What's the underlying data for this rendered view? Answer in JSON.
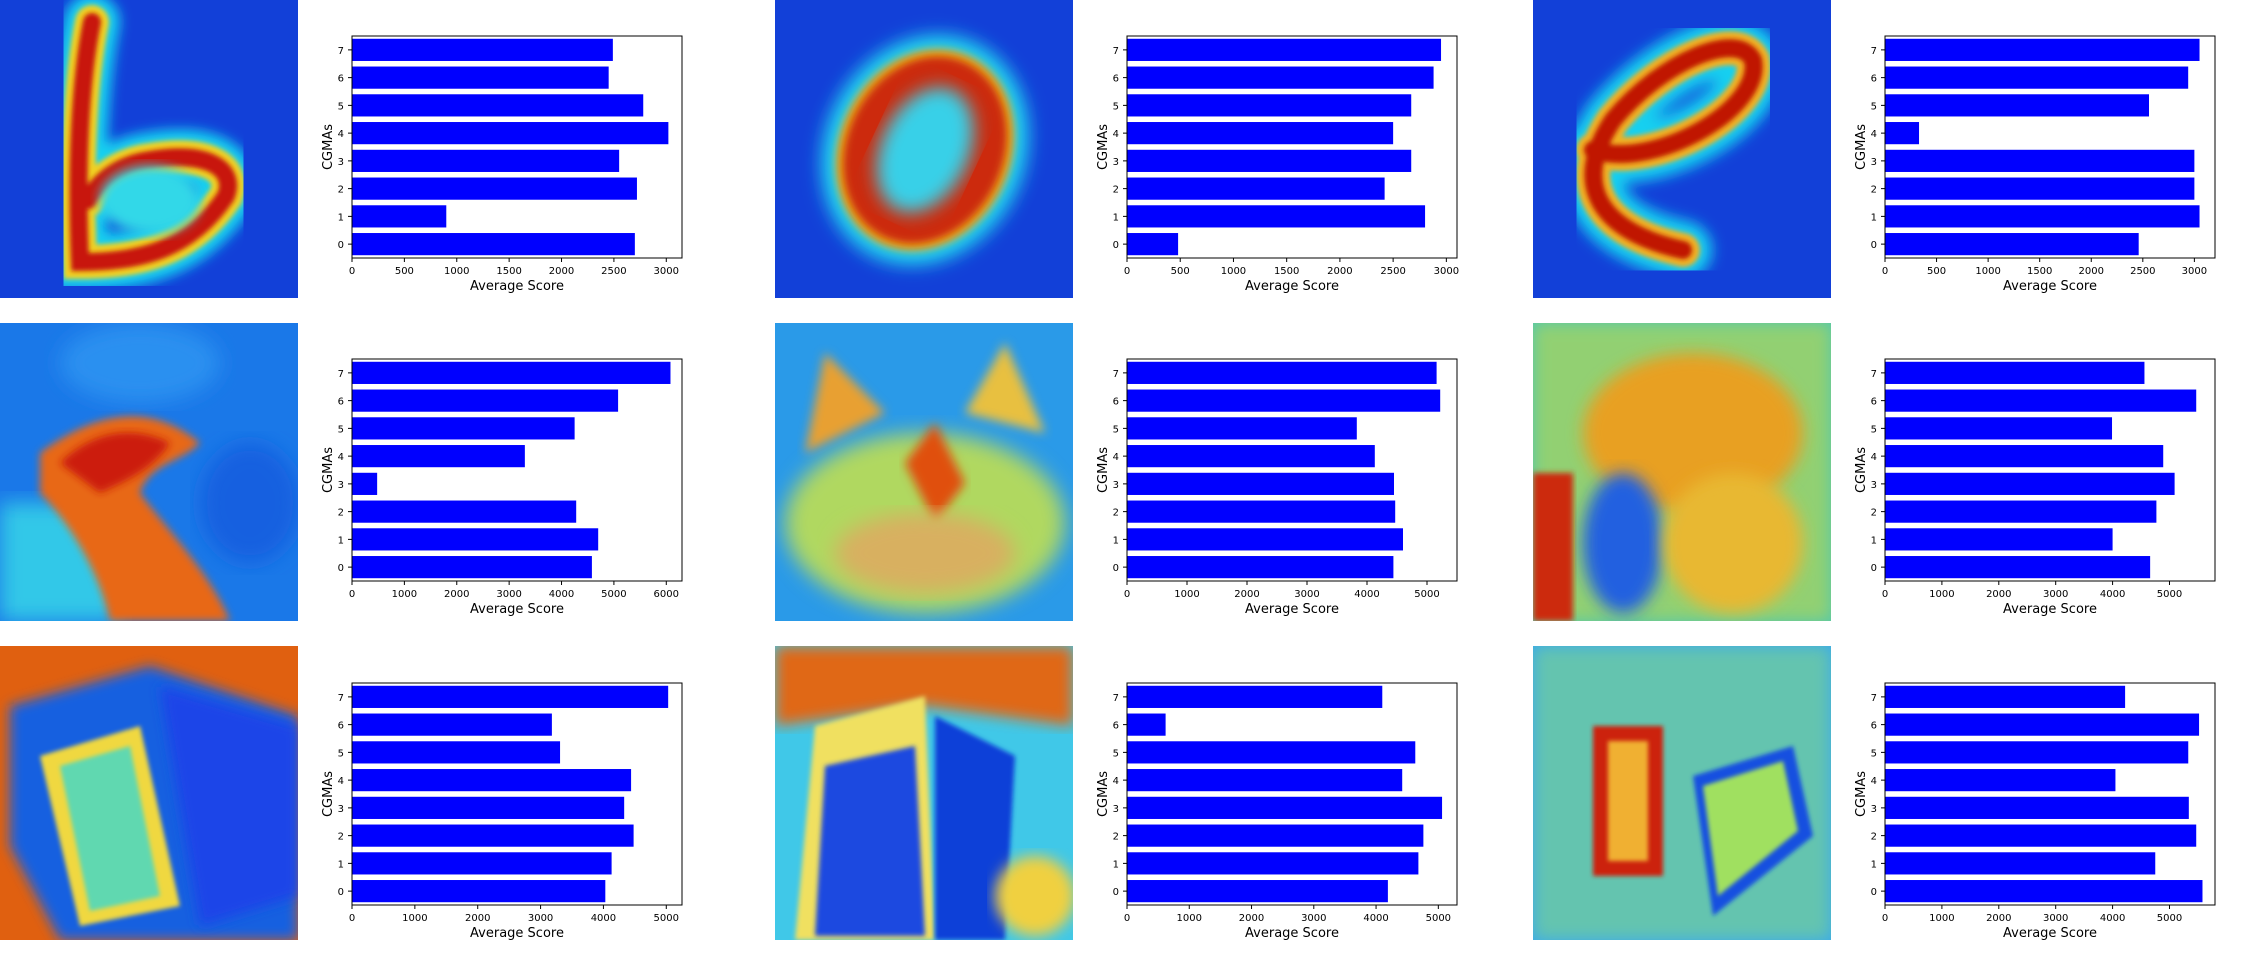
{
  "colors": {
    "bar": "#0000ff",
    "axis": "#000000",
    "background": "#ffffff"
  },
  "panels": [
    {
      "heatmap": "digit-b-heatmap",
      "chart_index": 0
    },
    {
      "heatmap": "digit-0-heatmap",
      "chart_index": 1
    },
    {
      "heatmap": "digit-e-heatmap",
      "chart_index": 2
    },
    {
      "heatmap": "dog-heatmap",
      "chart_index": 3
    },
    {
      "heatmap": "cat-face-heatmap",
      "chart_index": 4
    },
    {
      "heatmap": "cat-sitting-heatmap",
      "chart_index": 5
    },
    {
      "heatmap": "accordion-closeup-heatmap",
      "chart_index": 6
    },
    {
      "heatmap": "accordion-angle-heatmap",
      "chart_index": 7
    },
    {
      "heatmap": "accordion-player-heatmap",
      "chart_index": 8
    }
  ],
  "chart_data": [
    {
      "type": "bar",
      "orientation": "horizontal",
      "categories": [
        "0",
        "1",
        "2",
        "3",
        "4",
        "5",
        "6",
        "7"
      ],
      "values": [
        2700,
        900,
        2720,
        2550,
        3020,
        2780,
        2450,
        2490
      ],
      "xlabel": "Average Score",
      "ylabel": "CGMAs",
      "xlim": [
        0,
        3150
      ],
      "xticks": [
        0,
        500,
        1000,
        1500,
        2000,
        2500,
        3000
      ],
      "grid": false
    },
    {
      "type": "bar",
      "orientation": "horizontal",
      "categories": [
        "0",
        "1",
        "2",
        "3",
        "4",
        "5",
        "6",
        "7"
      ],
      "values": [
        480,
        2800,
        2420,
        2670,
        2500,
        2670,
        2880,
        2950
      ],
      "xlabel": "Average Score",
      "ylabel": "CGMAs",
      "xlim": [
        0,
        3100
      ],
      "xticks": [
        0,
        500,
        1000,
        1500,
        2000,
        2500,
        3000
      ],
      "grid": false
    },
    {
      "type": "bar",
      "orientation": "horizontal",
      "categories": [
        "0",
        "1",
        "2",
        "3",
        "4",
        "5",
        "6",
        "7"
      ],
      "values": [
        2460,
        3050,
        3000,
        3000,
        330,
        2560,
        2940,
        3050
      ],
      "xlabel": "Average Score",
      "ylabel": "CGMAs",
      "xlim": [
        0,
        3200
      ],
      "xticks": [
        0,
        500,
        1000,
        1500,
        2000,
        2500,
        3000
      ],
      "grid": false
    },
    {
      "type": "bar",
      "orientation": "horizontal",
      "categories": [
        "0",
        "1",
        "2",
        "3",
        "4",
        "5",
        "6",
        "7"
      ],
      "values": [
        4580,
        4700,
        4280,
        480,
        3300,
        4250,
        5080,
        6080
      ],
      "xlabel": "Average Score",
      "ylabel": "CGMAs",
      "xlim": [
        0,
        6300
      ],
      "xticks": [
        0,
        1000,
        2000,
        3000,
        4000,
        5000,
        6000
      ],
      "grid": false
    },
    {
      "type": "bar",
      "orientation": "horizontal",
      "categories": [
        "0",
        "1",
        "2",
        "3",
        "4",
        "5",
        "6",
        "7"
      ],
      "values": [
        4440,
        4600,
        4470,
        4450,
        4130,
        3830,
        5220,
        5160
      ],
      "xlabel": "Average Score",
      "ylabel": "CGMAs",
      "xlim": [
        0,
        5500
      ],
      "xticks": [
        0,
        1000,
        2000,
        3000,
        4000,
        5000
      ],
      "grid": false
    },
    {
      "type": "bar",
      "orientation": "horizontal",
      "categories": [
        "0",
        "1",
        "2",
        "3",
        "4",
        "5",
        "6",
        "7"
      ],
      "values": [
        4660,
        4000,
        4770,
        5090,
        4890,
        3990,
        5470,
        4560
      ],
      "xlabel": "Average Score",
      "ylabel": "CGMAs",
      "xlim": [
        0,
        5800
      ],
      "xticks": [
        0,
        1000,
        2000,
        3000,
        4000,
        5000
      ],
      "grid": false
    },
    {
      "type": "bar",
      "orientation": "horizontal",
      "categories": [
        "0",
        "1",
        "2",
        "3",
        "4",
        "5",
        "6",
        "7"
      ],
      "values": [
        4030,
        4130,
        4480,
        4330,
        4440,
        3310,
        3180,
        5030
      ],
      "xlabel": "Average Score",
      "ylabel": "CGMAs",
      "xlim": [
        0,
        5250
      ],
      "xticks": [
        0,
        1000,
        2000,
        3000,
        4000,
        5000
      ],
      "grid": false
    },
    {
      "type": "bar",
      "orientation": "horizontal",
      "categories": [
        "0",
        "1",
        "2",
        "3",
        "4",
        "5",
        "6",
        "7"
      ],
      "values": [
        4190,
        4680,
        4760,
        5060,
        4420,
        4630,
        620,
        4100
      ],
      "xlabel": "Average Score",
      "ylabel": "CGMAs",
      "xlim": [
        0,
        5300
      ],
      "xticks": [
        0,
        1000,
        2000,
        3000,
        4000,
        5000
      ],
      "grid": false
    },
    {
      "type": "bar",
      "orientation": "horizontal",
      "categories": [
        "0",
        "1",
        "2",
        "3",
        "4",
        "5",
        "6",
        "7"
      ],
      "values": [
        5580,
        4750,
        5470,
        5340,
        4050,
        5330,
        5520,
        4220
      ],
      "xlabel": "Average Score",
      "ylabel": "CGMAs",
      "xlim": [
        0,
        5800
      ],
      "xticks": [
        0,
        1000,
        2000,
        3000,
        4000,
        5000
      ],
      "grid": false
    }
  ]
}
